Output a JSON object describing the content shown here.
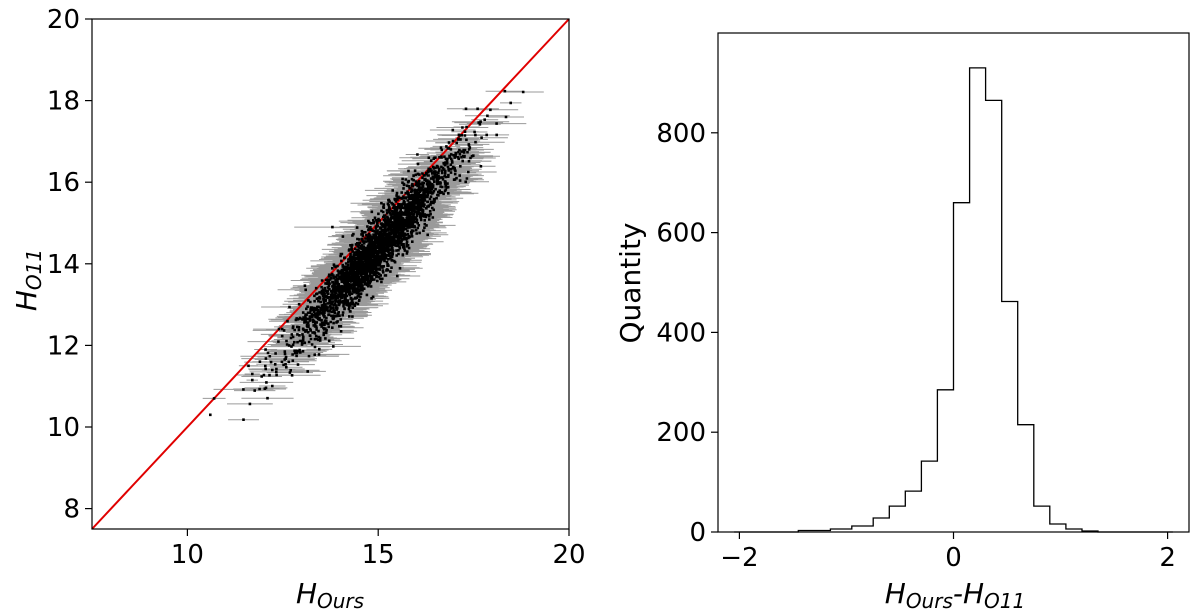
{
  "colors": {
    "identity_line": "#e00000",
    "error_bar": "#9a9a9a",
    "point": "#000000",
    "histogram": "#000000"
  },
  "chart_data": [
    {
      "type": "scatter",
      "xlabel": {
        "main": "H",
        "sub": "Ours"
      },
      "ylabel": {
        "main": "H",
        "sub": "O11"
      },
      "xlim": [
        7.5,
        20
      ],
      "ylim": [
        7.5,
        20
      ],
      "xticks": [
        "10",
        "15",
        "20"
      ],
      "yticks": [
        "8",
        "10",
        "12",
        "14",
        "16",
        "18",
        "20"
      ],
      "identity_line": true,
      "grid": false,
      "point_cloud": {
        "count": 3000,
        "x_center": 15.0,
        "spread_along": 1.0,
        "spread_across": 0.32,
        "x_error": 0.55
      },
      "points": [
        {
          "x": 10.7,
          "y": 10.7,
          "xerr": 0.3
        },
        {
          "x": 10.6,
          "y": 10.3,
          "xerr": 0.0
        },
        {
          "x": 11.6,
          "y": 11.5,
          "xerr": 0.25
        },
        {
          "x": 11.7,
          "y": 11.3,
          "xerr": 0.2
        },
        {
          "x": 11.7,
          "y": 11.15,
          "xerr": 0.15
        },
        {
          "x": 12.05,
          "y": 11.9,
          "xerr": 0.3
        },
        {
          "x": 11.9,
          "y": 11.6,
          "xerr": 0.2
        },
        {
          "x": 12.4,
          "y": 12.4,
          "xerr": 0.4
        },
        {
          "x": 17.3,
          "y": 17.8,
          "xerr": 0.5
        },
        {
          "x": 17.1,
          "y": 17.05,
          "xerr": 0.5
        },
        {
          "x": 16.5,
          "y": 16.6,
          "xerr": 0.5
        },
        {
          "x": 13.8,
          "y": 14.9,
          "xerr": 1.0
        },
        {
          "x": 15.5,
          "y": 13.7,
          "xerr": 0.6
        }
      ]
    },
    {
      "type": "histogram",
      "xlabel": {
        "a_main": "H",
        "a_sub": "Ours",
        "sep": "-",
        "b_main": "H",
        "b_sub": "O11"
      },
      "ylabel": "Quantity",
      "xlim": [
        -2.2,
        2.2
      ],
      "ylim": [
        0,
        1000
      ],
      "xticks": [
        "−2",
        "0",
        "2"
      ],
      "xtick_values": [
        -2,
        0,
        2
      ],
      "yticks": [
        "0",
        "200",
        "400",
        "600",
        "800"
      ],
      "ytick_values": [
        0,
        200,
        400,
        600,
        800
      ],
      "grid": false,
      "bin_edges": [
        -2.05,
        -1.45,
        -1.15,
        -0.95,
        -0.75,
        -0.6,
        -0.45,
        -0.3,
        -0.15,
        0.0,
        0.15,
        0.3,
        0.45,
        0.6,
        0.75,
        0.9,
        1.05,
        1.2,
        1.35,
        2.05
      ],
      "counts": [
        0,
        3,
        6,
        12,
        28,
        52,
        82,
        142,
        285,
        660,
        930,
        865,
        462,
        215,
        52,
        16,
        6,
        2,
        0
      ]
    }
  ]
}
